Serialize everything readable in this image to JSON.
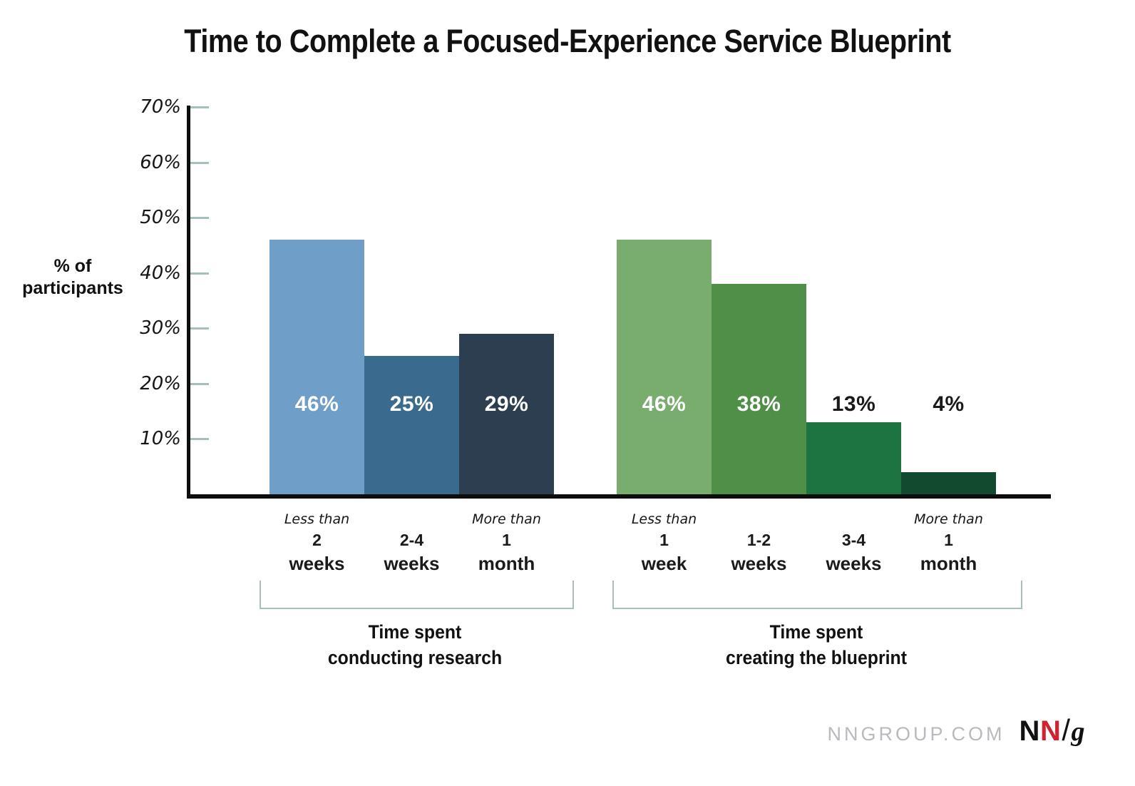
{
  "chart_data": {
    "type": "bar",
    "title": "Time to Complete a Focused-Experience Service Blueprint",
    "ylabel": "% of participants",
    "ylim": [
      0,
      70
    ],
    "yticks": [
      "10%",
      "20%",
      "30%",
      "40%",
      "50%",
      "60%",
      "70%"
    ],
    "grid": false,
    "legend": "none",
    "groups": [
      {
        "caption": [
          "Time spent",
          "conducting research"
        ],
        "bars": [
          {
            "prefix": "Less than",
            "num": "2",
            "unit": "weeks",
            "value": 46,
            "value_label": "46%",
            "bar_color": "#6f9fc9",
            "label_color": "#ffffff",
            "label_inside": true
          },
          {
            "prefix": "",
            "num": "2-4",
            "unit": "weeks",
            "value": 25,
            "value_label": "25%",
            "bar_color": "#3a6a8e",
            "label_color": "#ffffff",
            "label_inside": true
          },
          {
            "prefix": "More than",
            "num": "1",
            "unit": "month",
            "value": 29,
            "value_label": "29%",
            "bar_color": "#2d3e50",
            "label_color": "#ffffff",
            "label_inside": true
          }
        ]
      },
      {
        "caption": [
          "Time spent",
          "creating the blueprint"
        ],
        "bars": [
          {
            "prefix": "Less than",
            "num": "1",
            "unit": "week",
            "value": 46,
            "value_label": "46%",
            "bar_color": "#79ad6e",
            "label_color": "#ffffff",
            "label_inside": true
          },
          {
            "prefix": "",
            "num": "1-2",
            "unit": "weeks",
            "value": 38,
            "value_label": "38%",
            "bar_color": "#4f8f47",
            "label_color": "#ffffff",
            "label_inside": true
          },
          {
            "prefix": "",
            "num": "3-4",
            "unit": "weeks",
            "value": 13,
            "value_label": "13%",
            "bar_color": "#1e7440",
            "label_color": "#1a1a1a",
            "label_inside": false
          },
          {
            "prefix": "More than",
            "num": "1",
            "unit": "month",
            "value": 4,
            "value_label": "4%",
            "bar_color": "#114a2e",
            "label_color": "#1a1a1a",
            "label_inside": false
          }
        ]
      }
    ]
  },
  "colors": {
    "axis": "#0d0d0d",
    "tick": "#a4bfbc",
    "bracket": "#a4bfbc",
    "footer_gray": "#b9b9be",
    "logo_red": "#d0232e"
  },
  "footer": {
    "site_label": "NNGROUP.COM",
    "logo": {
      "n1": "N",
      "n2": "N",
      "slash": "/",
      "g": "g"
    }
  }
}
